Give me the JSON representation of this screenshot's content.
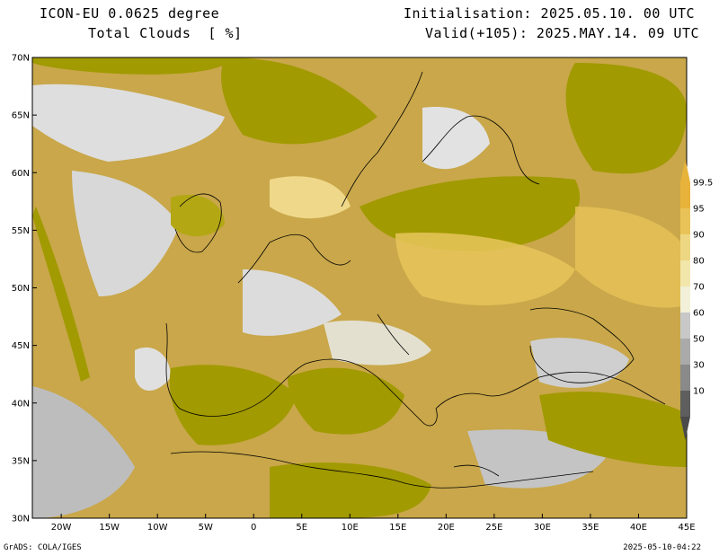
{
  "header": {
    "model": "ICON-EU 0.0625 degree",
    "variable": "Total Clouds  [ %]",
    "init": "Initialisation: 2025.05.10. 00 UTC",
    "valid": "Valid(+105): 2025.MAY.14. 09 UTC"
  },
  "axes": {
    "lat_labels": [
      "70N",
      "65N",
      "60N",
      "55N",
      "50N",
      "45N",
      "40N",
      "35N",
      "30N"
    ],
    "lon_labels": [
      "20W",
      "15W",
      "10W",
      "5W",
      "0",
      "5E",
      "10E",
      "15E",
      "20E",
      "25E",
      "30E",
      "35E",
      "40E",
      "45E"
    ],
    "lon_range": [
      -23,
      45
    ],
    "lat_range": [
      30,
      70
    ]
  },
  "legend": {
    "labels": [
      "99.5",
      "95",
      "90",
      "80",
      "70",
      "60",
      "50",
      "30",
      "10"
    ],
    "colors": [
      "#e8b33a",
      "#e9c358",
      "#eed783",
      "#f2e6aa",
      "#f2f0d8",
      "#c8c8c8",
      "#aaaaaa",
      "#8a8a8a",
      "#5e5e5e"
    ]
  },
  "palette": {
    "cloud_full": "#a19a00",
    "clear": "#dedede",
    "coast": "#000000"
  },
  "footer": {
    "left": "GrADS: COLA/IGES",
    "right": "2025-05-10-04:22"
  }
}
